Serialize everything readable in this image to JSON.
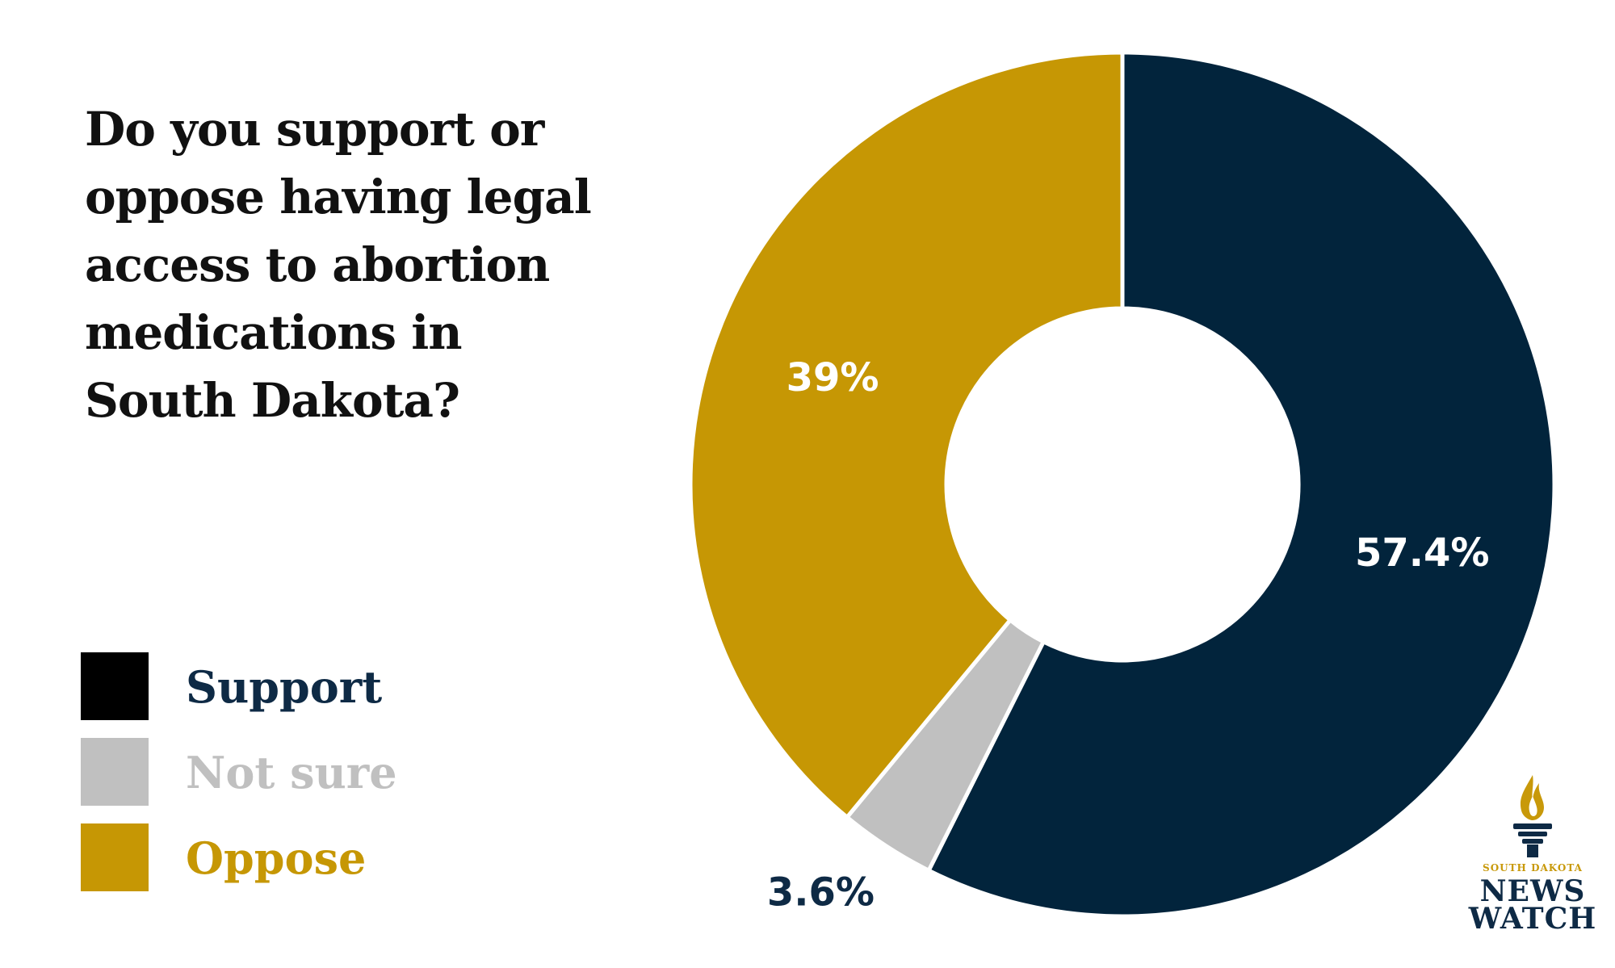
{
  "title_lines": [
    "Do you support or",
    "oppose having legal",
    "access to abortion",
    "medications in",
    "South Dakota?"
  ],
  "colors": {
    "support": "#02243c",
    "not_sure": "#c0c0c0",
    "oppose": "#c69704",
    "support_swatch": "#000000",
    "support_label": "#0e2a45",
    "title": "#111111"
  },
  "legend": [
    {
      "label": "Support",
      "key": "support"
    },
    {
      "label": "Not sure",
      "key": "not_sure"
    },
    {
      "label": "Oppose",
      "key": "oppose"
    }
  ],
  "chart_data": {
    "type": "pie",
    "donut": true,
    "title": "Do you support or oppose having legal access to abortion medications in South Dakota?",
    "categories": [
      "Support",
      "Not sure",
      "Oppose"
    ],
    "values": [
      57.4,
      3.6,
      39
    ],
    "value_labels": [
      "57.4%",
      "3.6%",
      "39%"
    ],
    "legend_position": "left"
  },
  "logo": {
    "subtitle": "SOUTH DAKOTA",
    "line1": "NEWS",
    "line2": "WATCH",
    "icon": "torch-icon"
  }
}
